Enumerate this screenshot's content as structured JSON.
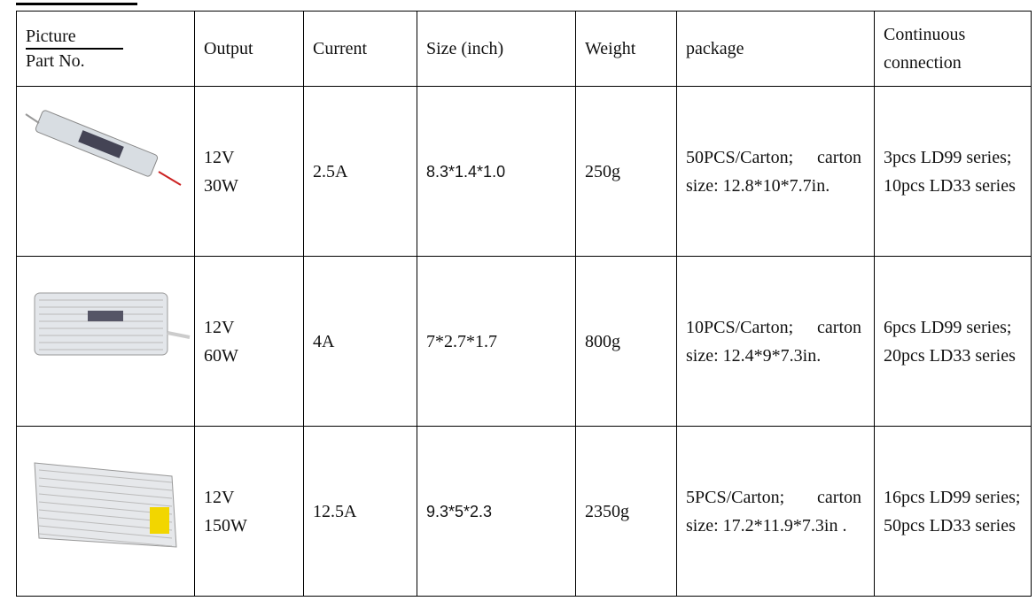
{
  "table": {
    "header": {
      "picture": "Picture",
      "part_no": "Part No.",
      "columns": [
        "Output",
        "Current",
        "Size (inch)",
        "Weight",
        "package",
        "Continuous connection"
      ]
    },
    "rows": [
      {
        "output": [
          "12V",
          "30W"
        ],
        "current": "2.5A",
        "size": "8.3*1.4*1.0",
        "weight": "250g",
        "package": "50PCS/Carton; carton size: 12.8*10*7.7in.",
        "connection": [
          "3pcs LD99 series;",
          "10pcs LD33 series"
        ]
      },
      {
        "output": [
          "12V",
          "60W"
        ],
        "current": "4A",
        "size": "7*2.7*1.7",
        "weight": "800g",
        "package": "10PCS/Carton; carton size: 12.4*9*7.3in.",
        "connection": [
          "6pcs LD99 series;",
          "20pcs LD33 series"
        ]
      },
      {
        "output": [
          "12V",
          "150W"
        ],
        "current": "12.5A",
        "size": "9.3*5*2.3",
        "weight": "2350g",
        "package": "5PCS/Carton; carton size: 17.2*11.9*7.3in .",
        "connection": [
          "16pcs LD99 series;",
          "50pcs LD33 series"
        ]
      }
    ]
  }
}
